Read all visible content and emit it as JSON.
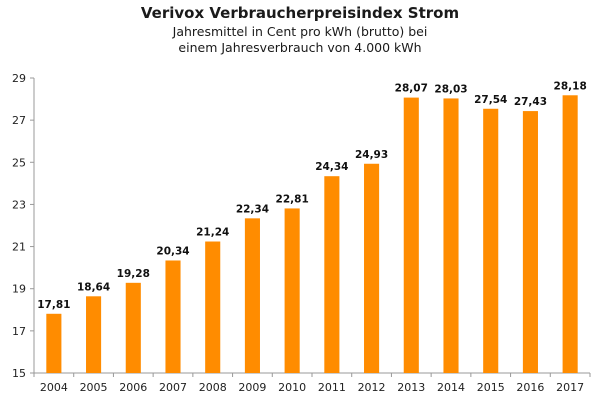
{
  "chart_data": {
    "type": "bar",
    "title": "Verivox Verbraucherpreisindex Strom",
    "subtitle_lines": [
      "Jahresmittel in Cent pro kWh (brutto) bei",
      "einem Jahresverbrauch von 4.000 kWh"
    ],
    "categories": [
      "2004",
      "2005",
      "2006",
      "2007",
      "2008",
      "2009",
      "2010",
      "2011",
      "2012",
      "2013",
      "2014",
      "2015",
      "2016",
      "2017"
    ],
    "values": [
      17.81,
      18.64,
      19.28,
      20.34,
      21.24,
      22.34,
      22.81,
      24.34,
      24.93,
      28.07,
      28.03,
      27.54,
      27.43,
      28.18
    ],
    "value_labels": [
      "17,81",
      "18,64",
      "19,28",
      "20,34",
      "21,24",
      "22,34",
      "22,81",
      "24,34",
      "24,93",
      "28,07",
      "28,03",
      "27,54",
      "27,43",
      "28,18"
    ],
    "xlabel": "",
    "ylabel": "",
    "ylim": [
      15,
      29
    ],
    "yticks": [
      15,
      17,
      19,
      21,
      23,
      25,
      27,
      29
    ],
    "grid": false,
    "bar_color": "#ff8c00",
    "axis_color": "#999999"
  }
}
